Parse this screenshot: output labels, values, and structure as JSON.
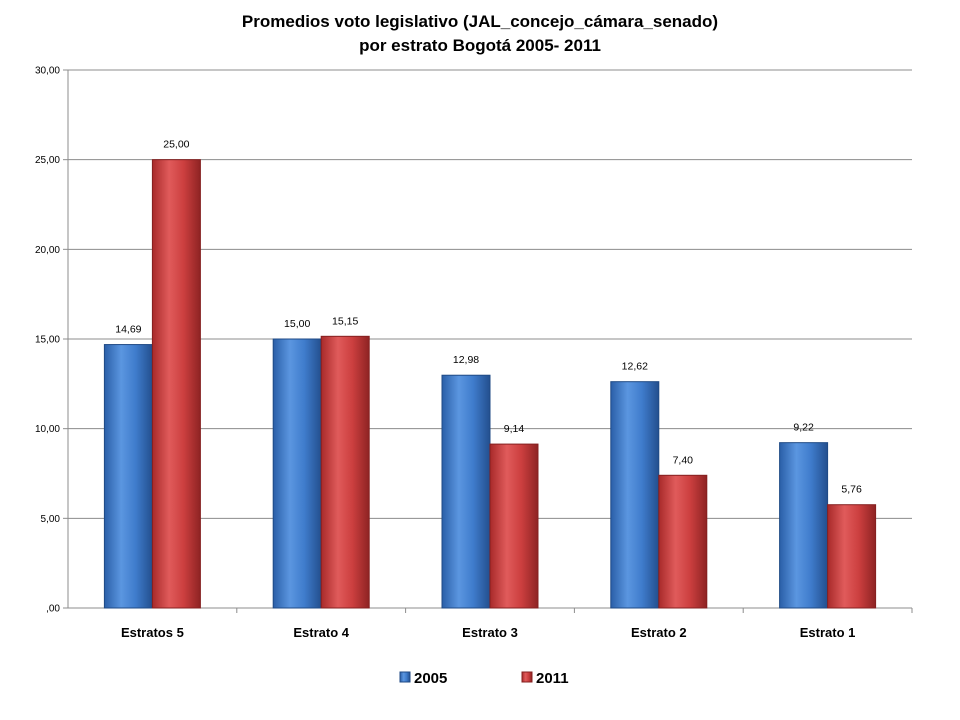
{
  "chart_data": {
    "type": "bar",
    "title": "Promedios voto legislativo (JAL_concejo_cámara_senado)",
    "subtitle": "por estrato Bogotá 2005- 2011",
    "categories": [
      "Estratos 5",
      "Estrato 4",
      "Estrato 3",
      "Estrato 2",
      "Estrato 1"
    ],
    "series": [
      {
        "name": "2005",
        "values": [
          14.69,
          15.0,
          12.98,
          12.62,
          9.22
        ],
        "labels": [
          "14,69",
          "15,00",
          "12,98",
          "12,62",
          "9,22"
        ],
        "color": "#3a78c8"
      },
      {
        "name": "2011",
        "values": [
          25.0,
          15.15,
          9.14,
          7.4,
          5.76
        ],
        "labels": [
          "25,00",
          "15,15",
          "9,14",
          "7,40",
          "5,76"
        ],
        "color": "#c83a3a"
      }
    ],
    "ylim": [
      0,
      30
    ],
    "yticks": [
      0,
      5,
      10,
      15,
      20,
      25,
      30
    ],
    "ytick_labels": [
      ",00",
      "5,00",
      "10,00",
      "15,00",
      "20,00",
      "25,00",
      "30,00"
    ],
    "xlabel": "",
    "ylabel": "",
    "grid": true,
    "legend_position": "bottom"
  }
}
